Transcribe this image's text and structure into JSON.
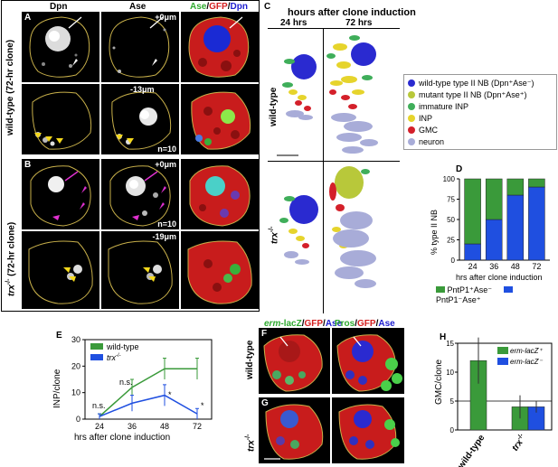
{
  "panelA": {
    "letter": "A",
    "col_dpn": "Dpn",
    "col_ase": "Ase",
    "col_merge_ase": "Ase",
    "col_merge_gfp": "GFP",
    "col_merge_dpn": "Dpn",
    "depth_top": "+0μm",
    "depth_bottom": "-13μm",
    "n": "n=10",
    "side_label": "wild-type (72-hr clone)"
  },
  "panelB": {
    "letter": "B",
    "depth_top": "+0μm",
    "depth_bottom": "-19μm",
    "n": "n=10",
    "side_label": "trx",
    "side_sup": "-/-",
    "side_rest": " (72-hr clone)"
  },
  "panelC": {
    "letter": "C",
    "title": "hours after clone induction",
    "col1": "24 hrs",
    "col2": "72 hrs",
    "row1": "wild-type",
    "row2": "trx",
    "row2_sup": "-/-",
    "legend": [
      {
        "label": "wild-type type II NB (Dpn⁺Ase⁻)",
        "color": "#2a2ad0"
      },
      {
        "label": "mutant type II NB (Dpn⁺Ase⁺)",
        "color": "#b8c83a"
      },
      {
        "label": "immature INP",
        "color": "#3fae5a"
      },
      {
        "label": "INP",
        "color": "#e6d42c"
      },
      {
        "label": "GMC",
        "color": "#d4202a"
      },
      {
        "label": "neuron",
        "color": "#a8acd8"
      }
    ]
  },
  "panelD": {
    "letter": "D",
    "chart_data": {
      "type": "bar",
      "categories": [
        "24",
        "36",
        "48",
        "72"
      ],
      "series": [
        {
          "name": "PntP1⁺Ase⁻",
          "values": [
            80,
            50,
            20,
            10
          ],
          "color": "#3a9a3a"
        },
        {
          "name": "PntP1⁻Ase⁺",
          "values": [
            20,
            50,
            80,
            90
          ],
          "color": "#1f4fe0"
        }
      ],
      "ylabel": "% type II NB",
      "xlabel": "hrs after clone induction",
      "ylim": [
        0,
        100
      ],
      "yticks": [
        "0",
        "25",
        "50",
        "75",
        "100"
      ]
    }
  },
  "panelE": {
    "letter": "E",
    "chart_data": {
      "type": "line",
      "x": [
        "24",
        "36",
        "48",
        "72"
      ],
      "series": [
        {
          "name": "wild-type",
          "values": [
            1,
            12,
            19,
            19
          ],
          "err": [
            1,
            3,
            4,
            4
          ],
          "color": "#3a9a3a"
        },
        {
          "name": "trx",
          "values": [
            1,
            6,
            9,
            2
          ],
          "err": [
            1,
            3,
            4,
            2
          ],
          "color": "#1f4fe0"
        }
      ],
      "legend_sup": "-/-",
      "ylabel": "INP/clone",
      "xlabel": "hrs after clone induction",
      "ylim": [
        0,
        30
      ],
      "yticks": [
        "0",
        "10",
        "20",
        "30"
      ],
      "annotations": [
        "n.s.",
        "n.s.",
        "*",
        "*"
      ]
    }
  },
  "panelF": {
    "letter": "F",
    "header_erm": "erm",
    "header_lacz": "-lacZ",
    "header_gfp1": "GFP",
    "header_ase1": "Ase",
    "header_pros": "Pros",
    "header_gfp2": "GFP",
    "header_ase2": "Ase",
    "row_label": "wild-type"
  },
  "panelG": {
    "letter": "G",
    "row_label": "trx",
    "row_sup": "-/-"
  },
  "panelH": {
    "letter": "H",
    "chart_data": {
      "type": "bar",
      "categories": [
        "wild-type",
        "trx"
      ],
      "category_sup": [
        "",
        "-/-"
      ],
      "series": [
        {
          "name": "erm-lacZ⁺",
          "values": [
            12,
            4
          ],
          "err": [
            4,
            2
          ],
          "color": "#3a9a3a"
        },
        {
          "name": "erm-lacZ⁻",
          "values": [
            0,
            4
          ],
          "err": [
            0,
            1
          ],
          "color": "#1f4fe0"
        }
      ],
      "ylabel": "GMC/clone",
      "ylim": [
        0,
        15
      ],
      "yticks": [
        "0",
        "5",
        "10",
        "15"
      ]
    }
  }
}
